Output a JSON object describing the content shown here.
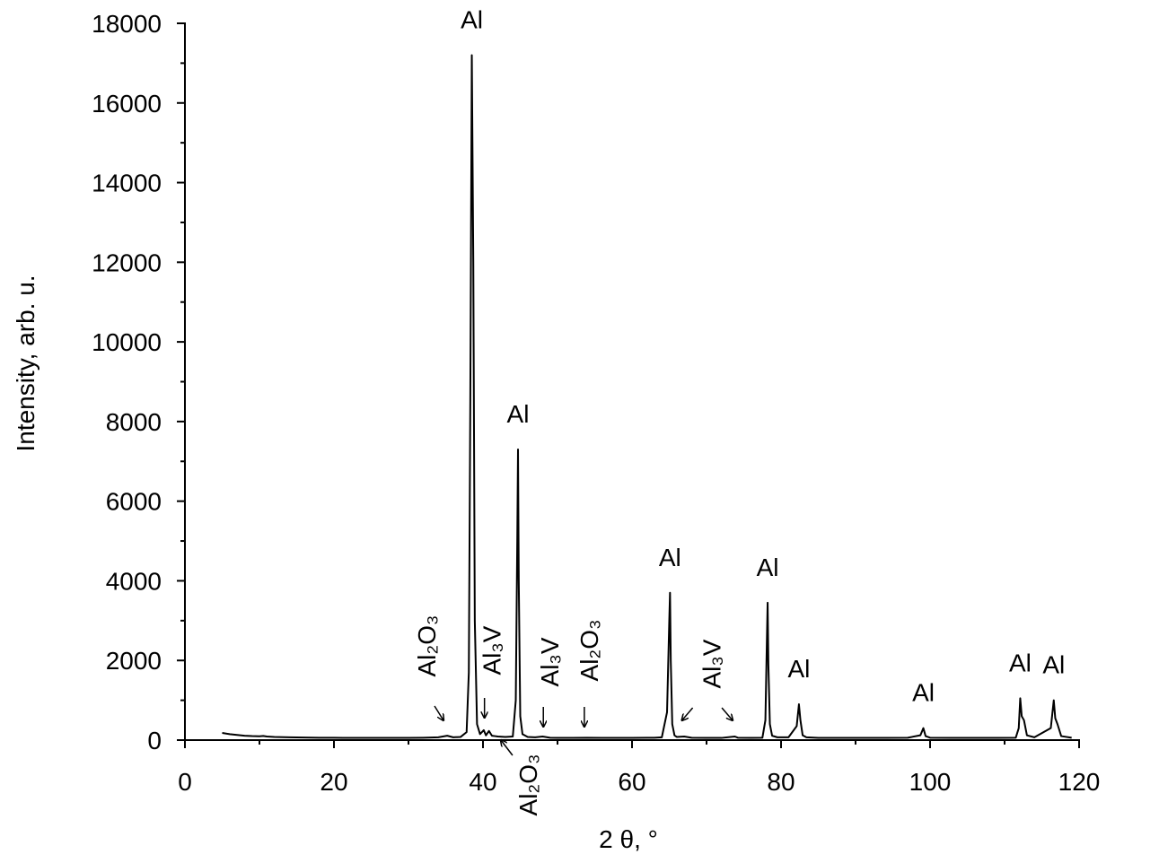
{
  "chart_data": {
    "type": "line",
    "xlabel": "2 θ, °",
    "ylabel": "Intensity, arb. u.",
    "color": "#000000",
    "xlim": [
      0,
      120
    ],
    "xticks": [
      0,
      20,
      40,
      60,
      80,
      100,
      120
    ],
    "xminorticks": [
      10,
      30,
      50,
      70,
      90,
      110
    ],
    "ylim": [
      0,
      18000
    ],
    "yticks": [
      0,
      2000,
      4000,
      6000,
      8000,
      10000,
      12000,
      14000,
      16000,
      18000
    ],
    "yminorticks": [
      1000,
      3000,
      5000,
      7000,
      9000,
      11000,
      13000,
      15000,
      17000
    ],
    "x": [
      5,
      6,
      7,
      8,
      9,
      10,
      10.5,
      11,
      12,
      14,
      16,
      18,
      20,
      22,
      24,
      26,
      28,
      30,
      32,
      34,
      35.2,
      36,
      37,
      37.8,
      38.1,
      38.3,
      38.5,
      38.7,
      38.9,
      39.2,
      39.6,
      40.1,
      40.4,
      40.8,
      41.2,
      41.6,
      42,
      43,
      44,
      44.4,
      44.6,
      44.7,
      44.8,
      45,
      45.3,
      46,
      47,
      48,
      49,
      50,
      52,
      54,
      56,
      58,
      60,
      62,
      63,
      64,
      64.7,
      65,
      65.1,
      65.2,
      65.4,
      65.7,
      66,
      67,
      68,
      70,
      72,
      73.8,
      74.2,
      76,
      77.5,
      77.9,
      78.1,
      78.2,
      78.3,
      78.5,
      78.8,
      79.5,
      81,
      82.1,
      82.4,
      82.6,
      82.9,
      83.4,
      85,
      88,
      91,
      94,
      97,
      98.7,
      99.1,
      99.4,
      100,
      103,
      106,
      109,
      111.5,
      111.9,
      112.1,
      112.3,
      112.6,
      113,
      114,
      116.2,
      116.6,
      116.8,
      117.1,
      117.6,
      119
    ],
    "values": [
      180,
      150,
      130,
      110,
      100,
      95,
      105,
      90,
      80,
      70,
      65,
      60,
      58,
      55,
      55,
      55,
      55,
      55,
      60,
      70,
      110,
      70,
      80,
      200,
      1700,
      8600,
      17200,
      12000,
      3000,
      400,
      150,
      250,
      120,
      230,
      110,
      100,
      90,
      80,
      90,
      1000,
      5000,
      7300,
      4000,
      600,
      150,
      80,
      70,
      90,
      60,
      55,
      55,
      60,
      55,
      55,
      55,
      60,
      60,
      70,
      700,
      3000,
      3700,
      2000,
      400,
      120,
      80,
      90,
      60,
      55,
      55,
      90,
      60,
      55,
      60,
      500,
      2500,
      3450,
      1900,
      400,
      110,
      70,
      70,
      350,
      900,
      500,
      120,
      70,
      55,
      55,
      55,
      55,
      60,
      120,
      300,
      100,
      60,
      55,
      55,
      55,
      60,
      300,
      1050,
      600,
      500,
      120,
      70,
      300,
      1000,
      550,
      400,
      100,
      60
    ],
    "annotations": [
      {
        "text": "Al",
        "points": [
          [
            38.5,
            17200
          ]
        ]
      },
      {
        "text": "Al",
        "points": [
          [
            44.7,
            7300
          ]
        ]
      },
      {
        "text": "Al",
        "points": [
          [
            65.1,
            3700
          ]
        ]
      },
      {
        "text": "Al",
        "points": [
          [
            78.2,
            3450
          ]
        ]
      },
      {
        "text": "Al",
        "points": [
          [
            82.4,
            900
          ]
        ]
      },
      {
        "text": "Al",
        "points": [
          [
            99.1,
            300
          ]
        ]
      },
      {
        "text": "Al",
        "points": [
          [
            112.1,
            1050
          ]
        ]
      },
      {
        "text": "Al",
        "points": [
          [
            116.6,
            1000
          ]
        ]
      },
      {
        "text": "Al₂O₃",
        "points": [
          [
            34.7,
            495
          ]
        ]
      },
      {
        "text": "Al₃V",
        "points": [
          [
            40.2,
            563
          ]
        ]
      },
      {
        "text": "Al₂O₃",
        "points": [
          [
            42.4,
            0
          ]
        ]
      },
      {
        "text": "Al₃V",
        "points": [
          [
            48.1,
            338
          ]
        ]
      },
      {
        "text": "Al₂O₃",
        "points": [
          [
            53.6,
            338
          ]
        ]
      },
      {
        "text": "Al₃V",
        "points": [
          [
            66.7,
            495
          ],
          [
            73.5,
            495
          ]
        ]
      }
    ]
  }
}
